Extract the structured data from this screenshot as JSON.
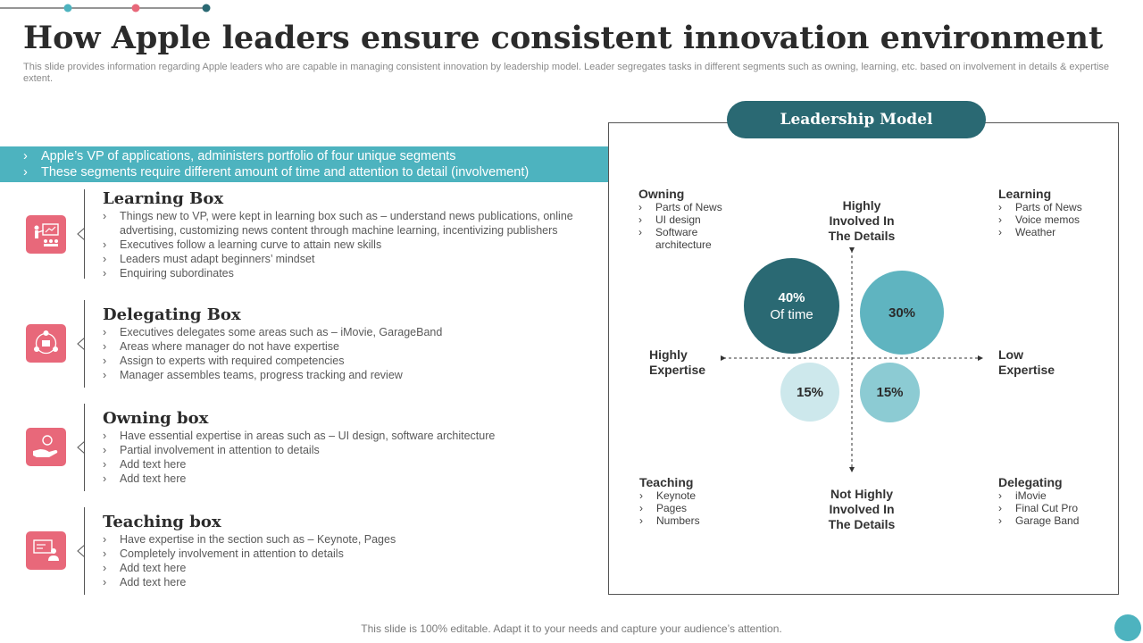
{
  "title": "How Apple leaders ensure consistent innovation environment",
  "subtitle": "This slide provides information regarding Apple leaders who are capable in managing consistent innovation by leadership model. Leader segregates tasks in different segments such as owning, learning, etc. based on involvement in details & expertise extent.",
  "intro_points": [
    "Apple’s VP of applications, administers portfolio of four unique segments",
    "These segments require different amount of time and attention to detail (involvement)"
  ],
  "boxes": [
    {
      "heading": "Learning Box",
      "icon": "presentation-board-icon",
      "points": [
        "Things new to VP, were kept in learning box such as – understand news publications, online advertising, customizing news content through machine learning, incentivizing publishers",
        "Executives follow a learning curve to attain new skills",
        "Leaders must adapt beginners’ mindset",
        "Enquiring subordinates"
      ]
    },
    {
      "heading": "Delegating Box",
      "icon": "team-network-icon",
      "points": [
        "Executives delegates some areas such as – iMovie, GarageBand",
        "Areas where manager do not have expertise",
        "Assign to experts with required competencies",
        "Manager assembles teams, progress tracking and review"
      ]
    },
    {
      "heading": "Owning box",
      "icon": "hand-coin-icon",
      "points": [
        "Have essential expertise in areas such as – UI design, software architecture",
        "Partial involvement in attention to details",
        "Add text here",
        "Add text here"
      ]
    },
    {
      "heading": "Teaching box",
      "icon": "teacher-screen-icon",
      "points": [
        "Have expertise in the section such as – Keynote, Pages",
        "Completely involvement in attention to details",
        "Add text here",
        "Add text here"
      ]
    }
  ],
  "model": {
    "title": "Leadership Model",
    "top_label": "Highly Involved In The Details",
    "bottom_label": "Not Highly Involved In The Details",
    "left_label": "Highly Expertise",
    "right_label": "Low Expertise",
    "owning": {
      "title": "Owning",
      "items": [
        "Parts of News",
        "UI design",
        "Software architecture"
      ]
    },
    "learning": {
      "title": "Learning",
      "items": [
        "Parts of News",
        "Voice memos",
        "Weather"
      ]
    },
    "teaching": {
      "title": "Teaching",
      "items": [
        "Keynote",
        "Pages",
        "Numbers"
      ]
    },
    "delegating": {
      "title": "Delegating",
      "items": [
        "iMovie",
        "Final Cut Pro",
        "Garage Band"
      ]
    },
    "circles": {
      "owning": {
        "value": "40%",
        "caption": "Of time",
        "color": "#2a6973"
      },
      "learning": {
        "value": "30%",
        "color": "#5fb4c0"
      },
      "teaching": {
        "value": "15%",
        "color": "#cde8ec"
      },
      "delegating": {
        "value": "15%",
        "color": "#8ccbd3"
      }
    }
  },
  "footer": "This slide is 100% editable. Adapt it to your needs and capture your audience’s attention.",
  "colors": {
    "accent_teal": "#4db3bf",
    "dark_teal": "#2a6973",
    "icon_pink": "#e8687a"
  }
}
